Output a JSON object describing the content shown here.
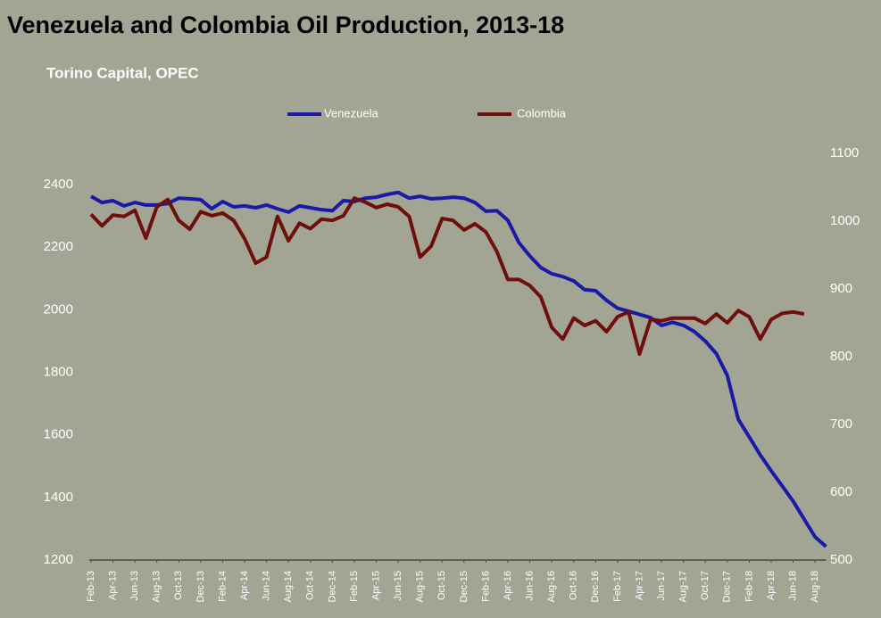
{
  "chart_data": {
    "type": "line",
    "title": "Venezuela and Colombia Oil Production, 2013-18",
    "subtitle": "Torino Capital, OPEC",
    "legend": "top",
    "categories": [
      "Feb-13",
      null,
      "Apr-13",
      null,
      "Jun-13",
      null,
      "Aug-13",
      null,
      "Oct-13",
      null,
      "Dec-13",
      null,
      "Feb-14",
      null,
      "Apr-14",
      null,
      "Jun-14",
      null,
      "Aug-14",
      null,
      "Oct-14",
      null,
      "Dec-14",
      null,
      "Feb-15",
      null,
      "Apr-15",
      null,
      "Jun-15",
      null,
      "Aug-15",
      null,
      "Oct-15",
      null,
      "Dec-15",
      null,
      "Feb-16",
      null,
      "Apr-16",
      null,
      "Jun-16",
      null,
      "Aug-16",
      null,
      "Oct-16",
      null,
      "Dec-16",
      null,
      "Feb-17",
      null,
      "Apr-17",
      null,
      "Jun-17",
      null,
      "Aug-17",
      null,
      "Oct-17",
      null,
      "Dec-17",
      null,
      "Feb-18",
      null,
      "Apr-18",
      null,
      "Jun-18",
      null,
      "Aug-18",
      null
    ],
    "series": [
      {
        "name": "Venezuela",
        "color": "#1a1aa6",
        "axis": "y",
        "values": [
          2363,
          2343,
          2349,
          2332,
          2343,
          2335,
          2335,
          2340,
          2357,
          2355,
          2352,
          2323,
          2346,
          2329,
          2332,
          2326,
          2335,
          2323,
          2312,
          2332,
          2326,
          2320,
          2317,
          2349,
          2346,
          2357,
          2360,
          2369,
          2375,
          2357,
          2363,
          2355,
          2357,
          2360,
          2357,
          2343,
          2315,
          2317,
          2286,
          2215,
          2172,
          2135,
          2115,
          2106,
          2092,
          2064,
          2061,
          2030,
          2005,
          1995,
          1985,
          1975,
          1950,
          1960,
          1950,
          1930,
          1900,
          1860,
          1790,
          1650,
          1593,
          1536,
          1485,
          1437,
          1388,
          1331,
          1274,
          1243
        ]
      },
      {
        "name": "Colombia",
        "color": "#6e0f0c",
        "axis": "y2",
        "values": [
          1010,
          993,
          1009,
          1007,
          1016,
          975,
          1021,
          1032,
          1001,
          988,
          1014,
          1008,
          1012,
          1001,
          974,
          938,
          947,
          1007,
          971,
          997,
          989,
          1003,
          1001,
          1008,
          1034,
          1028,
          1020,
          1025,
          1021,
          1007,
          947,
          963,
          1004,
          1001,
          987,
          996,
          984,
          955,
          914,
          914,
          905,
          888,
          843,
          826,
          857,
          846,
          853,
          837,
          859,
          866,
          804,
          855,
          853,
          857,
          857,
          857,
          849,
          863,
          850,
          868,
          859,
          826,
          855,
          864,
          866,
          863,
          null,
          null
        ]
      }
    ],
    "ylim": [
      1200,
      2500
    ],
    "yticks": [
      1200,
      1400,
      1600,
      1800,
      2000,
      2200,
      2400
    ],
    "y2lim": [
      500,
      1100
    ],
    "y2ticks": [
      500,
      600,
      700,
      800,
      900,
      1000,
      1100
    ]
  }
}
